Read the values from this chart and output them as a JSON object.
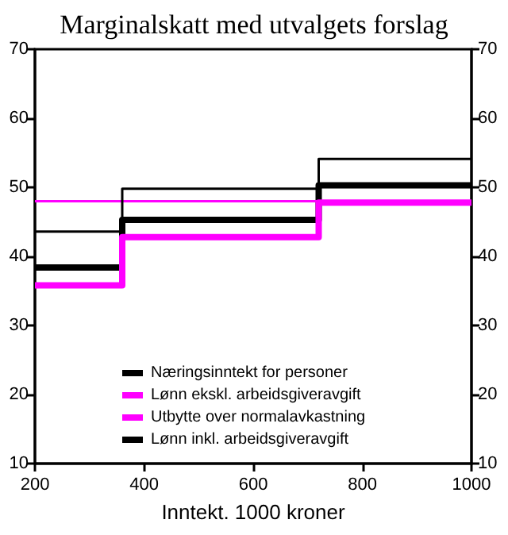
{
  "chart_data": {
    "type": "step",
    "title": "Marginalskatt med utvalgets forslag",
    "xlabel": "Inntekt. 1000 kroner",
    "x": [
      200,
      360,
      720,
      1000
    ],
    "series": [
      {
        "name": "Næringsinntekt for personer",
        "color": "#000000",
        "values": [
          38.4,
          45.3,
          50.3,
          50.3
        ]
      },
      {
        "name": "Lønn ekskl. arbeidsgiveravgift",
        "color": "#ff00ff",
        "values": [
          35.8,
          42.8,
          47.8,
          47.8
        ]
      },
      {
        "name": "Utbytte over normalavkastning",
        "color": "#ff00ff",
        "values": [
          48.0,
          48.0,
          48.0,
          48.0
        ]
      },
      {
        "name": "Lønn inkl. arbeidsgiveravgift",
        "color": "#000000",
        "values": [
          43.6,
          49.8,
          54.1,
          54.1
        ]
      }
    ],
    "xlim": [
      200,
      1000
    ],
    "xticks": [
      200,
      400,
      600,
      800,
      1000
    ],
    "ylim": [
      10,
      70
    ],
    "yticks": [
      10,
      20,
      30,
      40,
      50,
      60,
      70
    ],
    "y2lim": [
      10,
      70
    ],
    "y2ticks": [
      10,
      20,
      30,
      40,
      50,
      60,
      70
    ],
    "legend": "bottom",
    "grid": false
  }
}
